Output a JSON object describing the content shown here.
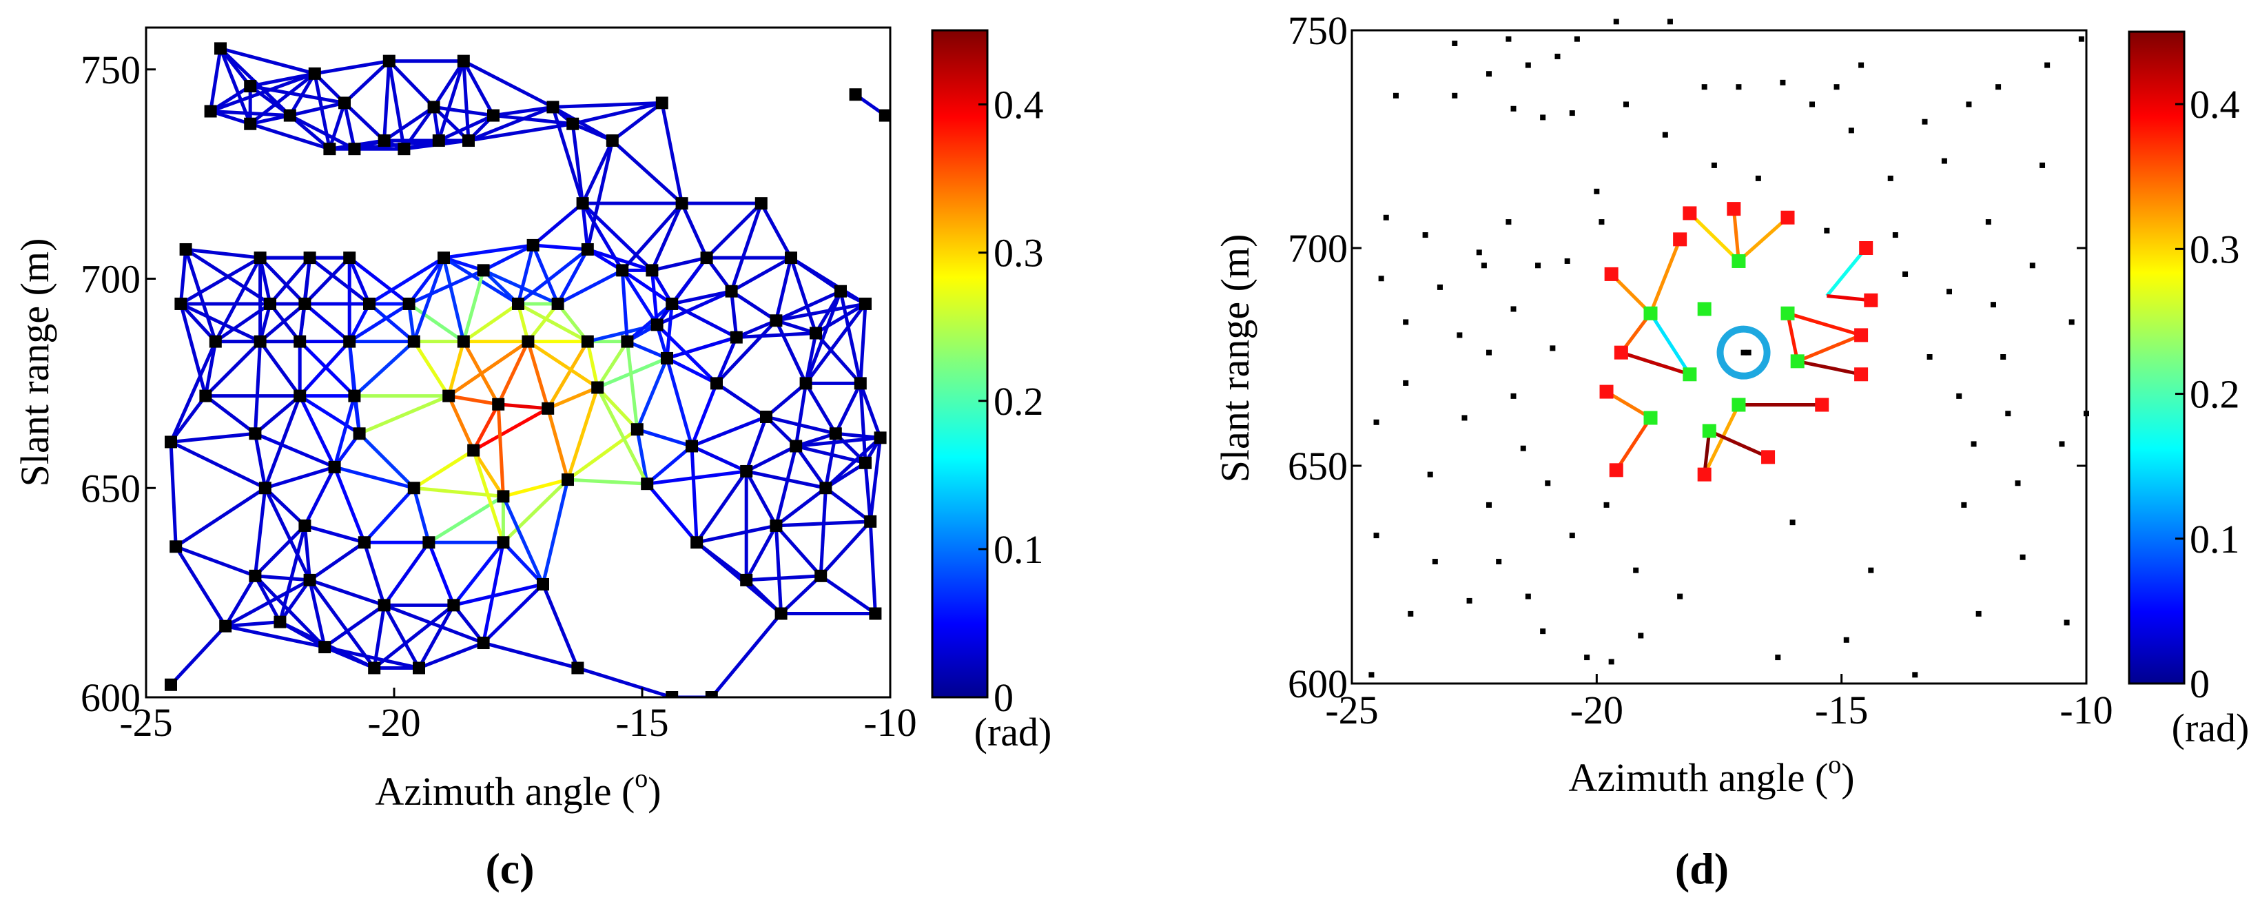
{
  "chart_data": [
    {
      "type": "network-scatter",
      "panel_label": "(c)",
      "xlabel": "Azimuth angle (",
      "xlabel_sup": "o",
      "xlabel_close": ")",
      "ylabel": "Slant range (m)",
      "xlim": [
        -25,
        -10
      ],
      "ylim": [
        600,
        760
      ],
      "xticks": [
        -25,
        -20,
        -15,
        -10
      ],
      "xtick_labels": [
        "-25",
        "-20",
        "-15",
        "-10"
      ],
      "yticks": [
        600,
        650,
        700,
        750
      ],
      "ytick_labels": [
        "600",
        "650",
        "700",
        "750"
      ],
      "colorbar": {
        "min": 0,
        "max": 0.45,
        "ticks": [
          0,
          0.1,
          0.2,
          0.3,
          0.4
        ],
        "tick_labels": [
          "0",
          "0.1",
          "0.2",
          "0.3",
          "0.4"
        ],
        "unit": "(rad)"
      },
      "points": [
        [
          -24.5,
          603
        ],
        [
          -24.4,
          636
        ],
        [
          -24.5,
          661
        ],
        [
          -24.3,
          694
        ],
        [
          -24.2,
          707
        ],
        [
          -23.7,
          740
        ],
        [
          -23.5,
          755
        ],
        [
          -23.8,
          672
        ],
        [
          -23.6,
          685
        ],
        [
          -23.4,
          617
        ],
        [
          -22.9,
          746
        ],
        [
          -22.9,
          737
        ],
        [
          -22.8,
          629
        ],
        [
          -22.8,
          663
        ],
        [
          -22.7,
          685
        ],
        [
          -22.7,
          705
        ],
        [
          -22.5,
          694
        ],
        [
          -22.6,
          650
        ],
        [
          -22.3,
          618
        ],
        [
          -22.1,
          739
        ],
        [
          -21.9,
          685
        ],
        [
          -21.9,
          672
        ],
        [
          -21.8,
          694
        ],
        [
          -21.8,
          641
        ],
        [
          -21.7,
          628
        ],
        [
          -21.7,
          705
        ],
        [
          -21.6,
          749
        ],
        [
          -21.4,
          612
        ],
        [
          -21.3,
          731
        ],
        [
          -21.2,
          655
        ],
        [
          -21.0,
          742
        ],
        [
          -20.9,
          685
        ],
        [
          -20.9,
          705
        ],
        [
          -20.8,
          731
        ],
        [
          -20.8,
          672
        ],
        [
          -20.7,
          663
        ],
        [
          -20.6,
          637
        ],
        [
          -20.5,
          694
        ],
        [
          -20.4,
          607
        ],
        [
          -20.2,
          622
        ],
        [
          -20.2,
          733
        ],
        [
          -20.1,
          752
        ],
        [
          -19.8,
          731
        ],
        [
          -19.7,
          694
        ],
        [
          -19.6,
          685
        ],
        [
          -19.6,
          650
        ],
        [
          -19.5,
          607
        ],
        [
          -19.3,
          637
        ],
        [
          -19.2,
          741
        ],
        [
          -19.1,
          733
        ],
        [
          -19.0,
          705
        ],
        [
          -18.9,
          672
        ],
        [
          -18.8,
          622
        ],
        [
          -18.6,
          685
        ],
        [
          -18.6,
          752
        ],
        [
          -18.5,
          733
        ],
        [
          -18.4,
          659
        ],
        [
          -18.2,
          702
        ],
        [
          -18.2,
          613
        ],
        [
          -18.0,
          739
        ],
        [
          -17.9,
          670
        ],
        [
          -17.8,
          648
        ],
        [
          -17.8,
          637
        ],
        [
          -17.5,
          694
        ],
        [
          -17.3,
          685
        ],
        [
          -17.2,
          708
        ],
        [
          -17.0,
          627
        ],
        [
          -16.9,
          669
        ],
        [
          -16.8,
          741
        ],
        [
          -16.7,
          694
        ],
        [
          -16.5,
          652
        ],
        [
          -16.4,
          737
        ],
        [
          -16.3,
          607
        ],
        [
          -16.2,
          718
        ],
        [
          -16.1,
          707
        ],
        [
          -16.1,
          685
        ],
        [
          -15.9,
          674
        ],
        [
          -15.6,
          733
        ],
        [
          -15.4,
          702
        ],
        [
          -15.3,
          685
        ],
        [
          -15.1,
          664
        ],
        [
          -14.9,
          651
        ],
        [
          -14.8,
          702
        ],
        [
          -14.7,
          689
        ],
        [
          -14.6,
          742
        ],
        [
          -14.5,
          681
        ],
        [
          -14.4,
          694
        ],
        [
          -14.4,
          600
        ],
        [
          -14.2,
          718
        ],
        [
          -14.0,
          660
        ],
        [
          -13.9,
          637
        ],
        [
          -13.7,
          705
        ],
        [
          -13.6,
          600
        ],
        [
          -13.5,
          675
        ],
        [
          -13.2,
          697
        ],
        [
          -13.1,
          686
        ],
        [
          -12.9,
          654
        ],
        [
          -12.9,
          628
        ],
        [
          -12.6,
          718
        ],
        [
          -12.5,
          667
        ],
        [
          -12.3,
          690
        ],
        [
          -12.3,
          641
        ],
        [
          -12.2,
          620
        ],
        [
          -12.0,
          705
        ],
        [
          -11.9,
          660
        ],
        [
          -11.7,
          675
        ],
        [
          -11.5,
          687
        ],
        [
          -11.4,
          629
        ],
        [
          -11.3,
          650
        ],
        [
          -11.1,
          663
        ],
        [
          -11.0,
          697
        ],
        [
          -10.7,
          744
        ],
        [
          -10.6,
          675
        ],
        [
          -10.5,
          656
        ],
        [
          -10.5,
          694
        ],
        [
          -10.2,
          662
        ],
        [
          -10.1,
          739
        ],
        [
          -10.3,
          620
        ],
        [
          -10.4,
          642
        ]
      ]
    },
    {
      "type": "network-scatter",
      "panel_label": "(d)",
      "xlabel": "Azimuth angle (",
      "xlabel_sup": "o",
      "xlabel_close": ")",
      "ylabel": "Slant range (m)",
      "xlim": [
        -25,
        -10
      ],
      "ylim": [
        600,
        750
      ],
      "xticks": [
        -25,
        -20,
        -15,
        -10
      ],
      "xtick_labels": [
        "-25",
        "-20",
        "-15",
        "-10"
      ],
      "yticks": [
        600,
        650,
        700,
        750
      ],
      "ytick_labels": [
        "600",
        "650",
        "700",
        "750"
      ],
      "colorbar": {
        "min": 0,
        "max": 0.45,
        "ticks": [
          0,
          0.1,
          0.2,
          0.3,
          0.4
        ],
        "tick_labels": [
          "0",
          "0.1",
          "0.2",
          "0.3",
          "0.4"
        ],
        "unit": "(rad)"
      },
      "center_marker": {
        "x": -17.0,
        "y": 676
      },
      "hub_points": [
        [
          -17.1,
          697
        ],
        [
          -16.1,
          685
        ],
        [
          -15.9,
          674
        ],
        [
          -17.1,
          664
        ],
        [
          -17.7,
          658
        ],
        [
          -18.9,
          661
        ],
        [
          -18.1,
          671
        ],
        [
          -18.9,
          685
        ],
        [
          -17.8,
          686
        ]
      ],
      "outer_points": [
        [
          -18.1,
          708
        ],
        [
          -17.2,
          709
        ],
        [
          -16.1,
          707
        ],
        [
          -18.3,
          702
        ],
        [
          -14.5,
          700
        ],
        [
          -19.7,
          694
        ],
        [
          -14.4,
          688
        ],
        [
          -14.6,
          680
        ],
        [
          -19.5,
          676
        ],
        [
          -14.6,
          671
        ],
        [
          -19.8,
          667
        ],
        [
          -15.4,
          664
        ],
        [
          -19.6,
          649
        ],
        [
          -17.8,
          648
        ],
        [
          -16.5,
          652
        ]
      ],
      "edges": [
        {
          "from": [
            -17.1,
            697
          ],
          "to": [
            -18.1,
            708
          ],
          "value": 0.3
        },
        {
          "from": [
            -17.1,
            697
          ],
          "to": [
            -17.2,
            709
          ],
          "value": 0.34
        },
        {
          "from": [
            -17.1,
            697
          ],
          "to": [
            -16.1,
            707
          ],
          "value": 0.32
        },
        {
          "from": [
            -18.9,
            685
          ],
          "to": [
            -18.3,
            702
          ],
          "value": 0.33
        },
        {
          "from": [
            -18.9,
            685
          ],
          "to": [
            -19.7,
            694
          ],
          "value": 0.33
        },
        {
          "from": [
            -15.3,
            689
          ],
          "to": [
            -14.5,
            700
          ],
          "value": 0.17
        },
        {
          "from": [
            -15.3,
            689
          ],
          "to": [
            -14.4,
            688
          ],
          "value": 0.4
        },
        {
          "from": [
            -16.1,
            685
          ],
          "to": [
            -14.6,
            680
          ],
          "value": 0.38
        },
        {
          "from": [
            -15.9,
            674
          ],
          "to": [
            -14.6,
            680
          ],
          "value": 0.36
        },
        {
          "from": [
            -15.9,
            674
          ],
          "to": [
            -14.6,
            671
          ],
          "value": 0.44
        },
        {
          "from": [
            -18.1,
            671
          ],
          "to": [
            -19.5,
            676
          ],
          "value": 0.2
        },
        {
          "from": [
            -19.5,
            676
          ],
          "to": [
            -18.1,
            671
          ],
          "value": 0.42
        },
        {
          "from": [
            -17.1,
            664
          ],
          "to": [
            -15.4,
            664
          ],
          "value": 0.44
        },
        {
          "from": [
            -18.9,
            661
          ],
          "to": [
            -19.8,
            667
          ],
          "value": 0.34
        },
        {
          "from": [
            -18.9,
            661
          ],
          "to": [
            -19.6,
            649
          ],
          "value": 0.36
        },
        {
          "from": [
            -17.1,
            664
          ],
          "to": [
            -17.8,
            648
          ],
          "value": 0.32
        },
        {
          "from": [
            -17.7,
            658
          ],
          "to": [
            -17.8,
            648
          ],
          "value": 0.45
        },
        {
          "from": [
            -17.7,
            658
          ],
          "to": [
            -16.5,
            652
          ],
          "value": 0.44
        },
        {
          "from": [
            -18.9,
            685
          ],
          "to": [
            -18.1,
            671
          ],
          "value": 0.15
        },
        {
          "from": [
            -19.5,
            676
          ],
          "to": [
            -18.9,
            685
          ],
          "value": 0.35
        },
        {
          "from": [
            -16.1,
            685
          ],
          "to": [
            -15.9,
            674
          ],
          "value": 0.38
        }
      ],
      "background_points": [
        [
          -24.6,
          602
        ],
        [
          -24.5,
          634
        ],
        [
          -24.5,
          660
        ],
        [
          -24.4,
          693
        ],
        [
          -24.3,
          707
        ],
        [
          -24.1,
          735
        ],
        [
          -23.9,
          683
        ],
        [
          -23.9,
          669
        ],
        [
          -23.8,
          616
        ],
        [
          -23.5,
          703
        ],
        [
          -23.4,
          648
        ],
        [
          -23.3,
          628
        ],
        [
          -23.2,
          691
        ],
        [
          -22.9,
          747
        ],
        [
          -22.9,
          735
        ],
        [
          -22.8,
          680
        ],
        [
          -22.7,
          661
        ],
        [
          -22.6,
          619
        ],
        [
          -22.4,
          699
        ],
        [
          -22.3,
          696
        ],
        [
          -22.2,
          740
        ],
        [
          -22.2,
          676
        ],
        [
          -22.2,
          641
        ],
        [
          -22.0,
          628
        ],
        [
          -21.8,
          748
        ],
        [
          -21.8,
          706
        ],
        [
          -21.7,
          732
        ],
        [
          -21.7,
          686
        ],
        [
          -21.7,
          666
        ],
        [
          -21.5,
          654
        ],
        [
          -21.4,
          742
        ],
        [
          -21.4,
          620
        ],
        [
          -21.2,
          696
        ],
        [
          -21.1,
          730
        ],
        [
          -21.1,
          612
        ],
        [
          -21.0,
          646
        ],
        [
          -20.9,
          677
        ],
        [
          -20.8,
          744
        ],
        [
          -20.6,
          697
        ],
        [
          -20.5,
          731
        ],
        [
          -20.5,
          634
        ],
        [
          -20.4,
          748
        ],
        [
          -20.2,
          606
        ],
        [
          -20.0,
          713
        ],
        [
          -19.9,
          706
        ],
        [
          -19.8,
          641
        ],
        [
          -19.7,
          605
        ],
        [
          -19.6,
          752
        ],
        [
          -19.4,
          733
        ],
        [
          -19.2,
          626
        ],
        [
          -19.1,
          611
        ],
        [
          -18.6,
          726
        ],
        [
          -18.5,
          752
        ],
        [
          -18.3,
          620
        ],
        [
          -17.8,
          737
        ],
        [
          -17.6,
          719
        ],
        [
          -17.1,
          737
        ],
        [
          -16.9,
          676
        ],
        [
          -16.7,
          716
        ],
        [
          -16.3,
          606
        ],
        [
          -16.2,
          738
        ],
        [
          -16.0,
          637
        ],
        [
          -15.6,
          733
        ],
        [
          -15.3,
          704
        ],
        [
          -14.9,
          610
        ],
        [
          -14.8,
          727
        ],
        [
          -14.6,
          742
        ],
        [
          -14.4,
          626
        ],
        [
          -14.0,
          716
        ],
        [
          -13.9,
          703
        ],
        [
          -13.7,
          694
        ],
        [
          -13.5,
          602
        ],
        [
          -13.2,
          675
        ],
        [
          -12.9,
          720
        ],
        [
          -12.8,
          690
        ],
        [
          -12.6,
          666
        ],
        [
          -12.5,
          641
        ],
        [
          -12.4,
          733
        ],
        [
          -12.3,
          655
        ],
        [
          -12.2,
          616
        ],
        [
          -12.0,
          706
        ],
        [
          -11.9,
          687
        ],
        [
          -11.7,
          675
        ],
        [
          -11.6,
          662
        ],
        [
          -11.4,
          646
        ],
        [
          -11.3,
          629
        ],
        [
          -11.1,
          696
        ],
        [
          -10.9,
          719
        ],
        [
          -10.8,
          742
        ],
        [
          -10.5,
          655
        ],
        [
          -10.4,
          614
        ],
        [
          -10.3,
          683
        ],
        [
          -10.1,
          748
        ],
        [
          -10.0,
          662
        ],
        [
          -11.8,
          737
        ],
        [
          -13.3,
          729
        ],
        [
          -15.1,
          737
        ]
      ]
    }
  ]
}
